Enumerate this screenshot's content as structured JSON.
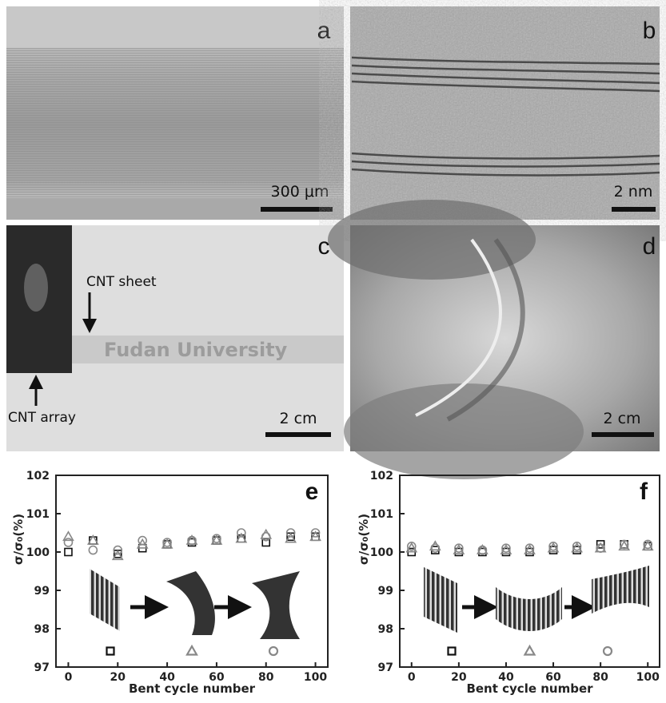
{
  "images": [
    {
      "label": "a",
      "scale": "300 μm"
    },
    {
      "label": "b",
      "scale": "2 nm"
    },
    {
      "label": "c",
      "scale": "2 cm",
      "annotations": [
        "CNT sheet",
        "CNT array"
      ],
      "text": "Fudan University"
    },
    {
      "label": "d",
      "scale": "2 cm"
    }
  ],
  "chart_data": [
    {
      "type": "scatter",
      "title": "e",
      "x_label": "Bent cycle number",
      "y_label": "σ/σ₀(%)",
      "x": [
        0,
        10,
        20,
        30,
        40,
        50,
        60,
        70,
        80,
        90,
        100
      ],
      "xlim": [
        -5,
        105
      ],
      "ylim": [
        97,
        102
      ],
      "xticks": [
        0,
        20,
        40,
        60,
        80,
        100
      ],
      "yticks": [
        97,
        98,
        99,
        100,
        101,
        102
      ],
      "series": [
        {
          "marker": "square",
          "color": "#111111",
          "values": [
            100.0,
            100.3,
            99.95,
            100.1,
            100.2,
            100.25,
            100.3,
            100.35,
            100.25,
            100.4,
            100.4
          ]
        },
        {
          "marker": "triangle",
          "color": "#888888",
          "values": [
            100.4,
            100.3,
            99.9,
            100.2,
            100.2,
            100.3,
            100.3,
            100.35,
            100.45,
            100.35,
            100.4
          ]
        },
        {
          "marker": "circle",
          "color": "#888888",
          "values": [
            100.25,
            100.05,
            100.05,
            100.3,
            100.25,
            100.3,
            100.35,
            100.5,
            100.4,
            100.5,
            100.5
          ]
        }
      ]
    },
    {
      "type": "scatter",
      "title": "f",
      "x_label": "Bent cycle number",
      "y_label": "σ/σ₀(%)",
      "x": [
        0,
        10,
        20,
        30,
        40,
        50,
        60,
        70,
        80,
        90,
        100
      ],
      "xlim": [
        -5,
        105
      ],
      "ylim": [
        97,
        102
      ],
      "xticks": [
        0,
        20,
        40,
        60,
        80,
        100
      ],
      "yticks": [
        97,
        98,
        99,
        100,
        101,
        102
      ],
      "series": [
        {
          "marker": "square",
          "color": "#111111",
          "values": [
            100.0,
            100.05,
            100.0,
            100.0,
            100.0,
            100.0,
            100.05,
            100.05,
            100.2,
            100.2,
            100.15
          ]
        },
        {
          "marker": "triangle",
          "color": "#888888",
          "values": [
            100.1,
            100.15,
            100.05,
            100.05,
            100.05,
            100.05,
            100.1,
            100.1,
            100.1,
            100.15,
            100.15
          ]
        },
        {
          "marker": "circle",
          "color": "#888888",
          "values": [
            100.15,
            100.1,
            100.1,
            100.05,
            100.1,
            100.1,
            100.15,
            100.15,
            100.1,
            100.2,
            100.2
          ]
        }
      ]
    }
  ]
}
